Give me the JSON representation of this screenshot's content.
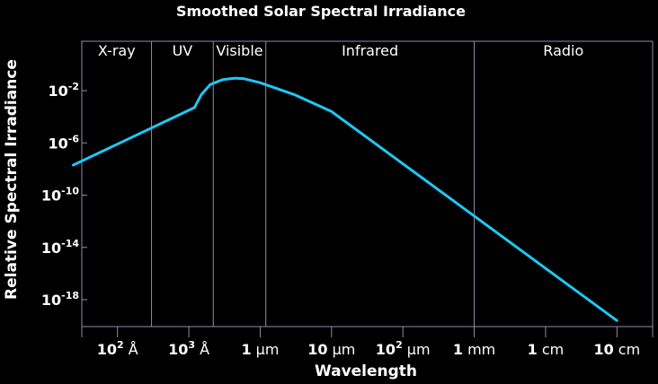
{
  "chart_data": {
    "type": "line",
    "title": "Smoothed Solar Spectral Irradiance",
    "xlabel": "Wavelength",
    "ylabel": "Relative Spectral Irradiance",
    "x_scale": "log",
    "y_scale": "log",
    "y_ticks": [
      {
        "base": "10",
        "exp": "-2",
        "value": 0.01
      },
      {
        "base": "10",
        "exp": "-6",
        "value": 1e-06
      },
      {
        "base": "10",
        "exp": "-10",
        "value": 1e-10
      },
      {
        "base": "10",
        "exp": "-14",
        "value": 1e-14
      },
      {
        "base": "10",
        "exp": "-18",
        "value": 1e-18
      }
    ],
    "x_ticks": [
      {
        "base": "10",
        "exp": "2",
        "unit": "Å",
        "meters": 1e-08
      },
      {
        "base": "10",
        "exp": "3",
        "unit": "Å",
        "meters": 1e-07
      },
      {
        "base": "1",
        "exp": "",
        "unit": "μm",
        "meters": 1e-06
      },
      {
        "base": "10",
        "exp": "",
        "unit": "μm",
        "meters": 1e-05
      },
      {
        "base": "10",
        "exp": "2",
        "unit": "μm",
        "meters": 0.0001
      },
      {
        "base": "1",
        "exp": "",
        "unit": "mm",
        "meters": 0.001
      },
      {
        "base": "1",
        "exp": "",
        "unit": "cm",
        "meters": 0.01
      },
      {
        "base": "10",
        "exp": "",
        "unit": "cm",
        "meters": 0.1
      }
    ],
    "regions": [
      {
        "label": "X-ray"
      },
      {
        "label": "UV"
      },
      {
        "label": "Visible"
      },
      {
        "label": "Infrared"
      },
      {
        "label": "Radio"
      }
    ],
    "region_boundaries_m": [
      3e-08,
      2.2e-07,
      1.2e-06,
      0.001
    ],
    "series": [
      {
        "x_m": [
          2.4e-09,
          1.2e-07,
          1.5e-07,
          2e-07,
          3e-07,
          4.5e-07,
          6e-07,
          1e-06,
          3e-06,
          1e-05,
          0.0001,
          0.001,
          0.01,
          0.1
        ],
        "y": [
          2e-08,
          0.0005,
          0.005,
          0.03,
          0.07,
          0.09,
          0.08,
          0.04,
          0.005,
          0.00025,
          2.5e-08,
          2.5e-12,
          2.5e-16,
          2.5e-20
        ]
      }
    ],
    "line_color": "#1ec8f5"
  }
}
